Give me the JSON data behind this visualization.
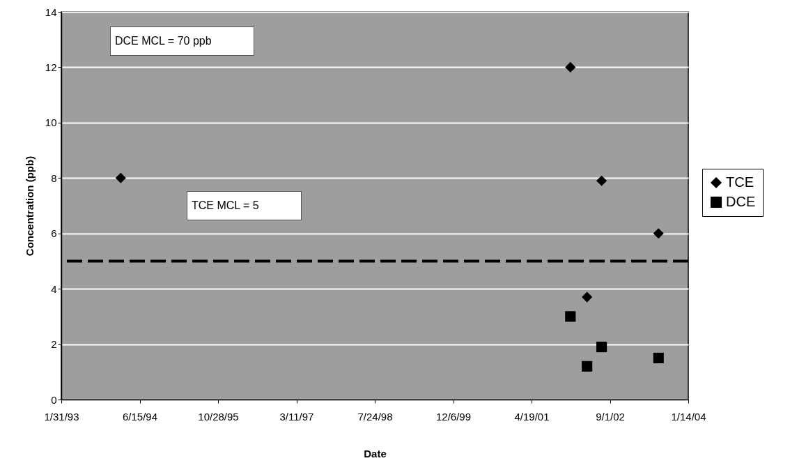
{
  "chart_data": {
    "type": "scatter",
    "xlabel": "Date",
    "ylabel": "Concentration (ppb)",
    "xlim": [
      "1993-01-31",
      "2004-01-14"
    ],
    "xticks": [
      {
        "value": "1993-01-31",
        "label": "1/31/93"
      },
      {
        "value": "1994-06-15",
        "label": "6/15/94"
      },
      {
        "value": "1995-10-28",
        "label": "10/28/95"
      },
      {
        "value": "1997-03-11",
        "label": "3/11/97"
      },
      {
        "value": "1998-07-24",
        "label": "7/24/98"
      },
      {
        "value": "1999-12-06",
        "label": "12/6/99"
      },
      {
        "value": "2001-04-19",
        "label": "4/19/01"
      },
      {
        "value": "2002-09-01",
        "label": "9/1/02"
      },
      {
        "value": "2004-01-14",
        "label": "1/14/04"
      }
    ],
    "ylim": [
      0,
      14
    ],
    "yticks": [
      0,
      2,
      4,
      6,
      8,
      10,
      12,
      14
    ],
    "grid": "y",
    "legend": "right",
    "series": [
      {
        "name": "TCE",
        "color": "#000000",
        "marker": "diamond",
        "x": [
          "1994-02-14",
          "2001-12-23",
          "2002-04-08",
          "2002-07-10",
          "2003-07-08"
        ],
        "values": [
          8,
          12,
          3.7,
          7.9,
          6
        ]
      },
      {
        "name": "DCE",
        "color": "#000000",
        "marker": "square",
        "x": [
          "2001-12-23",
          "2002-04-08",
          "2002-07-10",
          "2003-07-08"
        ],
        "values": [
          3.0,
          1.2,
          1.9,
          1.5
        ]
      }
    ],
    "ref_lines": [
      {
        "axis": "y",
        "value": 5,
        "color": "#000000",
        "line_style": "dashed"
      }
    ],
    "annotations": [
      "DCE MCL = 70 ppb",
      "TCE MCL = 5"
    ]
  }
}
